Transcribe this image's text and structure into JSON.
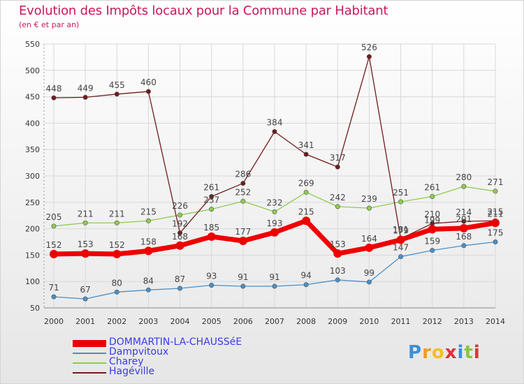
{
  "header": {
    "title": "Evolution des Impôts locaux pour la Commune par Habitant",
    "subtitle": "(en € et par an)"
  },
  "logo": {
    "letters": [
      "P",
      "r",
      "o",
      "x",
      "i",
      "t",
      "i"
    ],
    "colors": [
      "#3a8fd9",
      "#f29b1a",
      "#f2c21a",
      "#e0303a",
      "#3a8fd9",
      "#8bc63f",
      "#e0303a"
    ]
  },
  "chart_data": {
    "type": "line",
    "x": [
      2000,
      2001,
      2002,
      2003,
      2004,
      2005,
      2006,
      2007,
      2008,
      2009,
      2010,
      2011,
      2012,
      2013,
      2014
    ],
    "ylim": [
      50,
      550
    ],
    "yticks": [
      50,
      100,
      150,
      200,
      250,
      300,
      350,
      400,
      450,
      500,
      550
    ],
    "grid": true,
    "legend_position": "bottom-left",
    "series": [
      {
        "name": "DOMMARTIN-LA-CHAUSSéE",
        "color": "#ee0000",
        "emphasis": true,
        "values": [
          152,
          153,
          152,
          158,
          168,
          185,
          177,
          193,
          215,
          153,
          164,
          179,
          199,
          201,
          211
        ]
      },
      {
        "name": "Dampvitoux",
        "color": "#4a90c8",
        "values": [
          71,
          67,
          80,
          84,
          87,
          93,
          91,
          91,
          94,
          103,
          99,
          147,
          159,
          168,
          175
        ]
      },
      {
        "name": "Charey",
        "color": "#8ecb50",
        "values": [
          205,
          211,
          211,
          215,
          226,
          237,
          252,
          232,
          269,
          242,
          239,
          251,
          261,
          280,
          271
        ]
      },
      {
        "name": "Hagéville",
        "color": "#6e1c1c",
        "values": [
          448,
          449,
          455,
          460,
          192,
          261,
          286,
          384,
          341,
          317,
          526,
          181,
          210,
          214,
          215
        ]
      }
    ]
  }
}
